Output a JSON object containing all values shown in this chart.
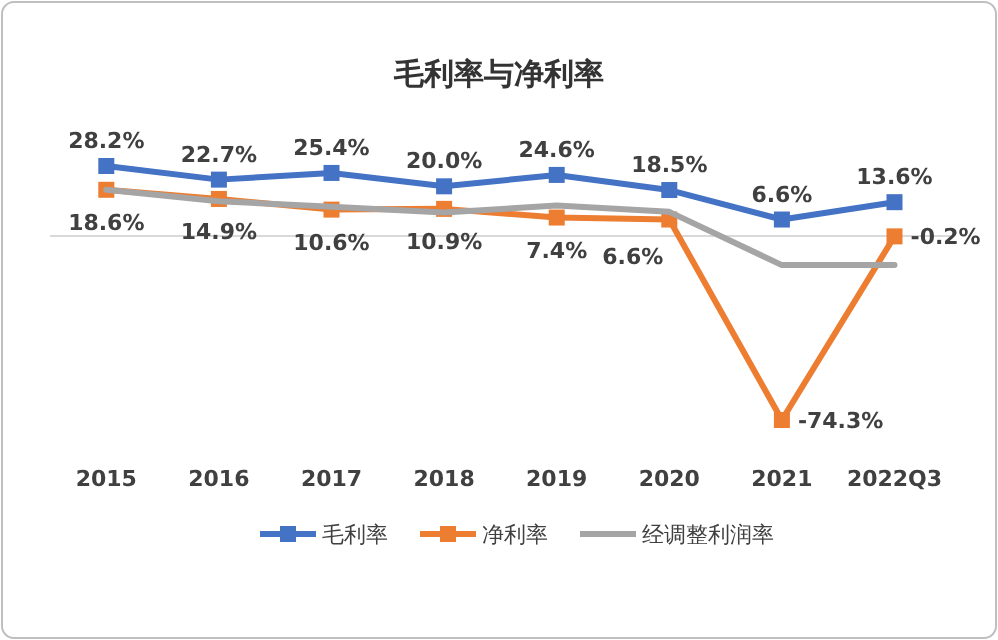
{
  "chart_data": {
    "type": "line",
    "title": "毛利率与净利率",
    "categories": [
      "2015",
      "2016",
      "2017",
      "2018",
      "2019",
      "2020",
      "2021",
      "2022Q3"
    ],
    "legend": "bottom",
    "grid": false,
    "series": [
      {
        "name": "毛利率",
        "color": "#4472c4",
        "marker": "square",
        "values": [
          28.2,
          22.7,
          25.4,
          20.0,
          24.6,
          18.5,
          6.6,
          13.6
        ],
        "value_labels": [
          "28.2%",
          "22.7%",
          "25.4%",
          "20.0%",
          "24.6%",
          "18.5%",
          "6.6%",
          "13.6%"
        ]
      },
      {
        "name": "净利率",
        "color": "#ed7d31",
        "marker": "square",
        "values": [
          18.6,
          14.9,
          10.6,
          10.9,
          7.4,
          6.6,
          -74.3,
          -0.2
        ],
        "value_labels": [
          "18.6%",
          "14.9%",
          "10.6%",
          "10.9%",
          "7.4%",
          "6.6%",
          "-74.3%",
          "-0.2%"
        ]
      },
      {
        "name": "经调整利润率",
        "color": "#a5a5a5",
        "marker": "none",
        "values": [
          18.6,
          14.0,
          11.8,
          9.4,
          12.3,
          9.7,
          -11.8,
          -11.8
        ]
      }
    ]
  }
}
